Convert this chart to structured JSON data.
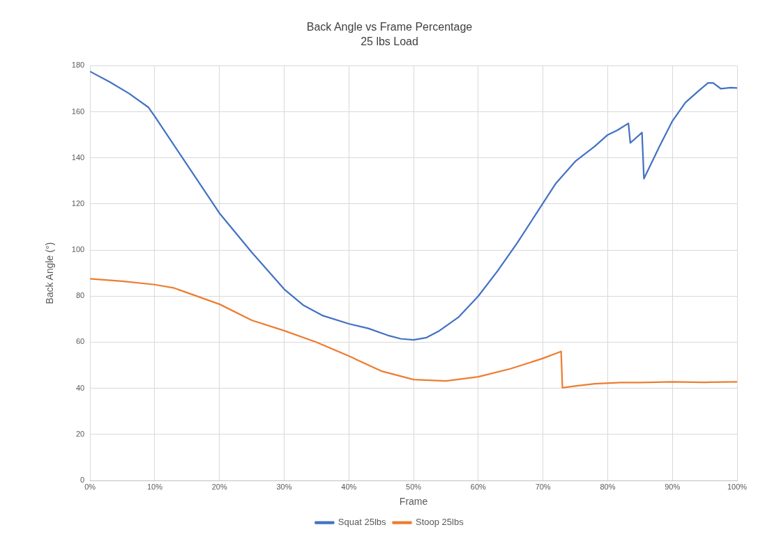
{
  "chart_data": {
    "type": "line",
    "title": "Back Angle vs Frame Percentage",
    "subtitle": "25 lbs Load",
    "xlabel": "Frame",
    "ylabel": "Back Angle (°)",
    "xlim": [
      0,
      100
    ],
    "xticks": [
      {
        "value": 0,
        "label": "0%"
      },
      {
        "value": 10,
        "label": "10%"
      },
      {
        "value": 20,
        "label": "20%"
      },
      {
        "value": 30,
        "label": "30%"
      },
      {
        "value": 40,
        "label": "40%"
      },
      {
        "value": 50,
        "label": "50%"
      },
      {
        "value": 60,
        "label": "60%"
      },
      {
        "value": 70,
        "label": "70%"
      },
      {
        "value": 80,
        "label": "80%"
      },
      {
        "value": 90,
        "label": "90%"
      },
      {
        "value": 100,
        "label": "100%"
      }
    ],
    "ylim": [
      0,
      180
    ],
    "yticks": [
      0,
      20,
      40,
      60,
      80,
      100,
      120,
      140,
      160,
      180
    ],
    "grid": true,
    "legend": "bottom",
    "marker": "none",
    "line_style": "solid",
    "series": [
      {
        "name": "Squat 25lbs",
        "color": "#4472c4",
        "x": [
          0,
          3,
          6,
          9,
          10,
          15,
          20,
          25,
          30,
          33,
          36,
          40,
          43,
          46,
          48,
          50,
          52,
          54,
          57,
          60,
          63,
          66,
          69,
          72,
          75,
          78,
          80,
          81.5,
          83.2,
          83.5,
          85.3,
          85.6,
          88,
          90,
          92,
          94,
          95.5,
          96.3,
          97.5,
          99,
          100
        ],
        "values": [
          177.5,
          173,
          168,
          162,
          158,
          137,
          116,
          99,
          83,
          76,
          71.5,
          68,
          66,
          63,
          61.5,
          61,
          62,
          65,
          71,
          80,
          91,
          103,
          116,
          129,
          138.5,
          145,
          150,
          152,
          155,
          146.5,
          151,
          131,
          145,
          156,
          164,
          169,
          172.5,
          172.5,
          170,
          170.5,
          170.3
        ]
      },
      {
        "name": "Stoop 25lbs",
        "color": "#ed7d31",
        "x": [
          0,
          5,
          10,
          13,
          16,
          20,
          25,
          30,
          35,
          40,
          45,
          50,
          55,
          60,
          65,
          70,
          72.8,
          73,
          75,
          78,
          82,
          85,
          90,
          95,
          100
        ],
        "values": [
          87.5,
          86.5,
          85,
          83.5,
          80.5,
          76.5,
          69.5,
          65,
          60,
          54,
          47.5,
          43.8,
          43.2,
          45,
          48.5,
          53,
          56,
          40.2,
          41,
          42,
          42.5,
          42.5,
          42.8,
          42.6,
          42.8
        ]
      }
    ]
  }
}
